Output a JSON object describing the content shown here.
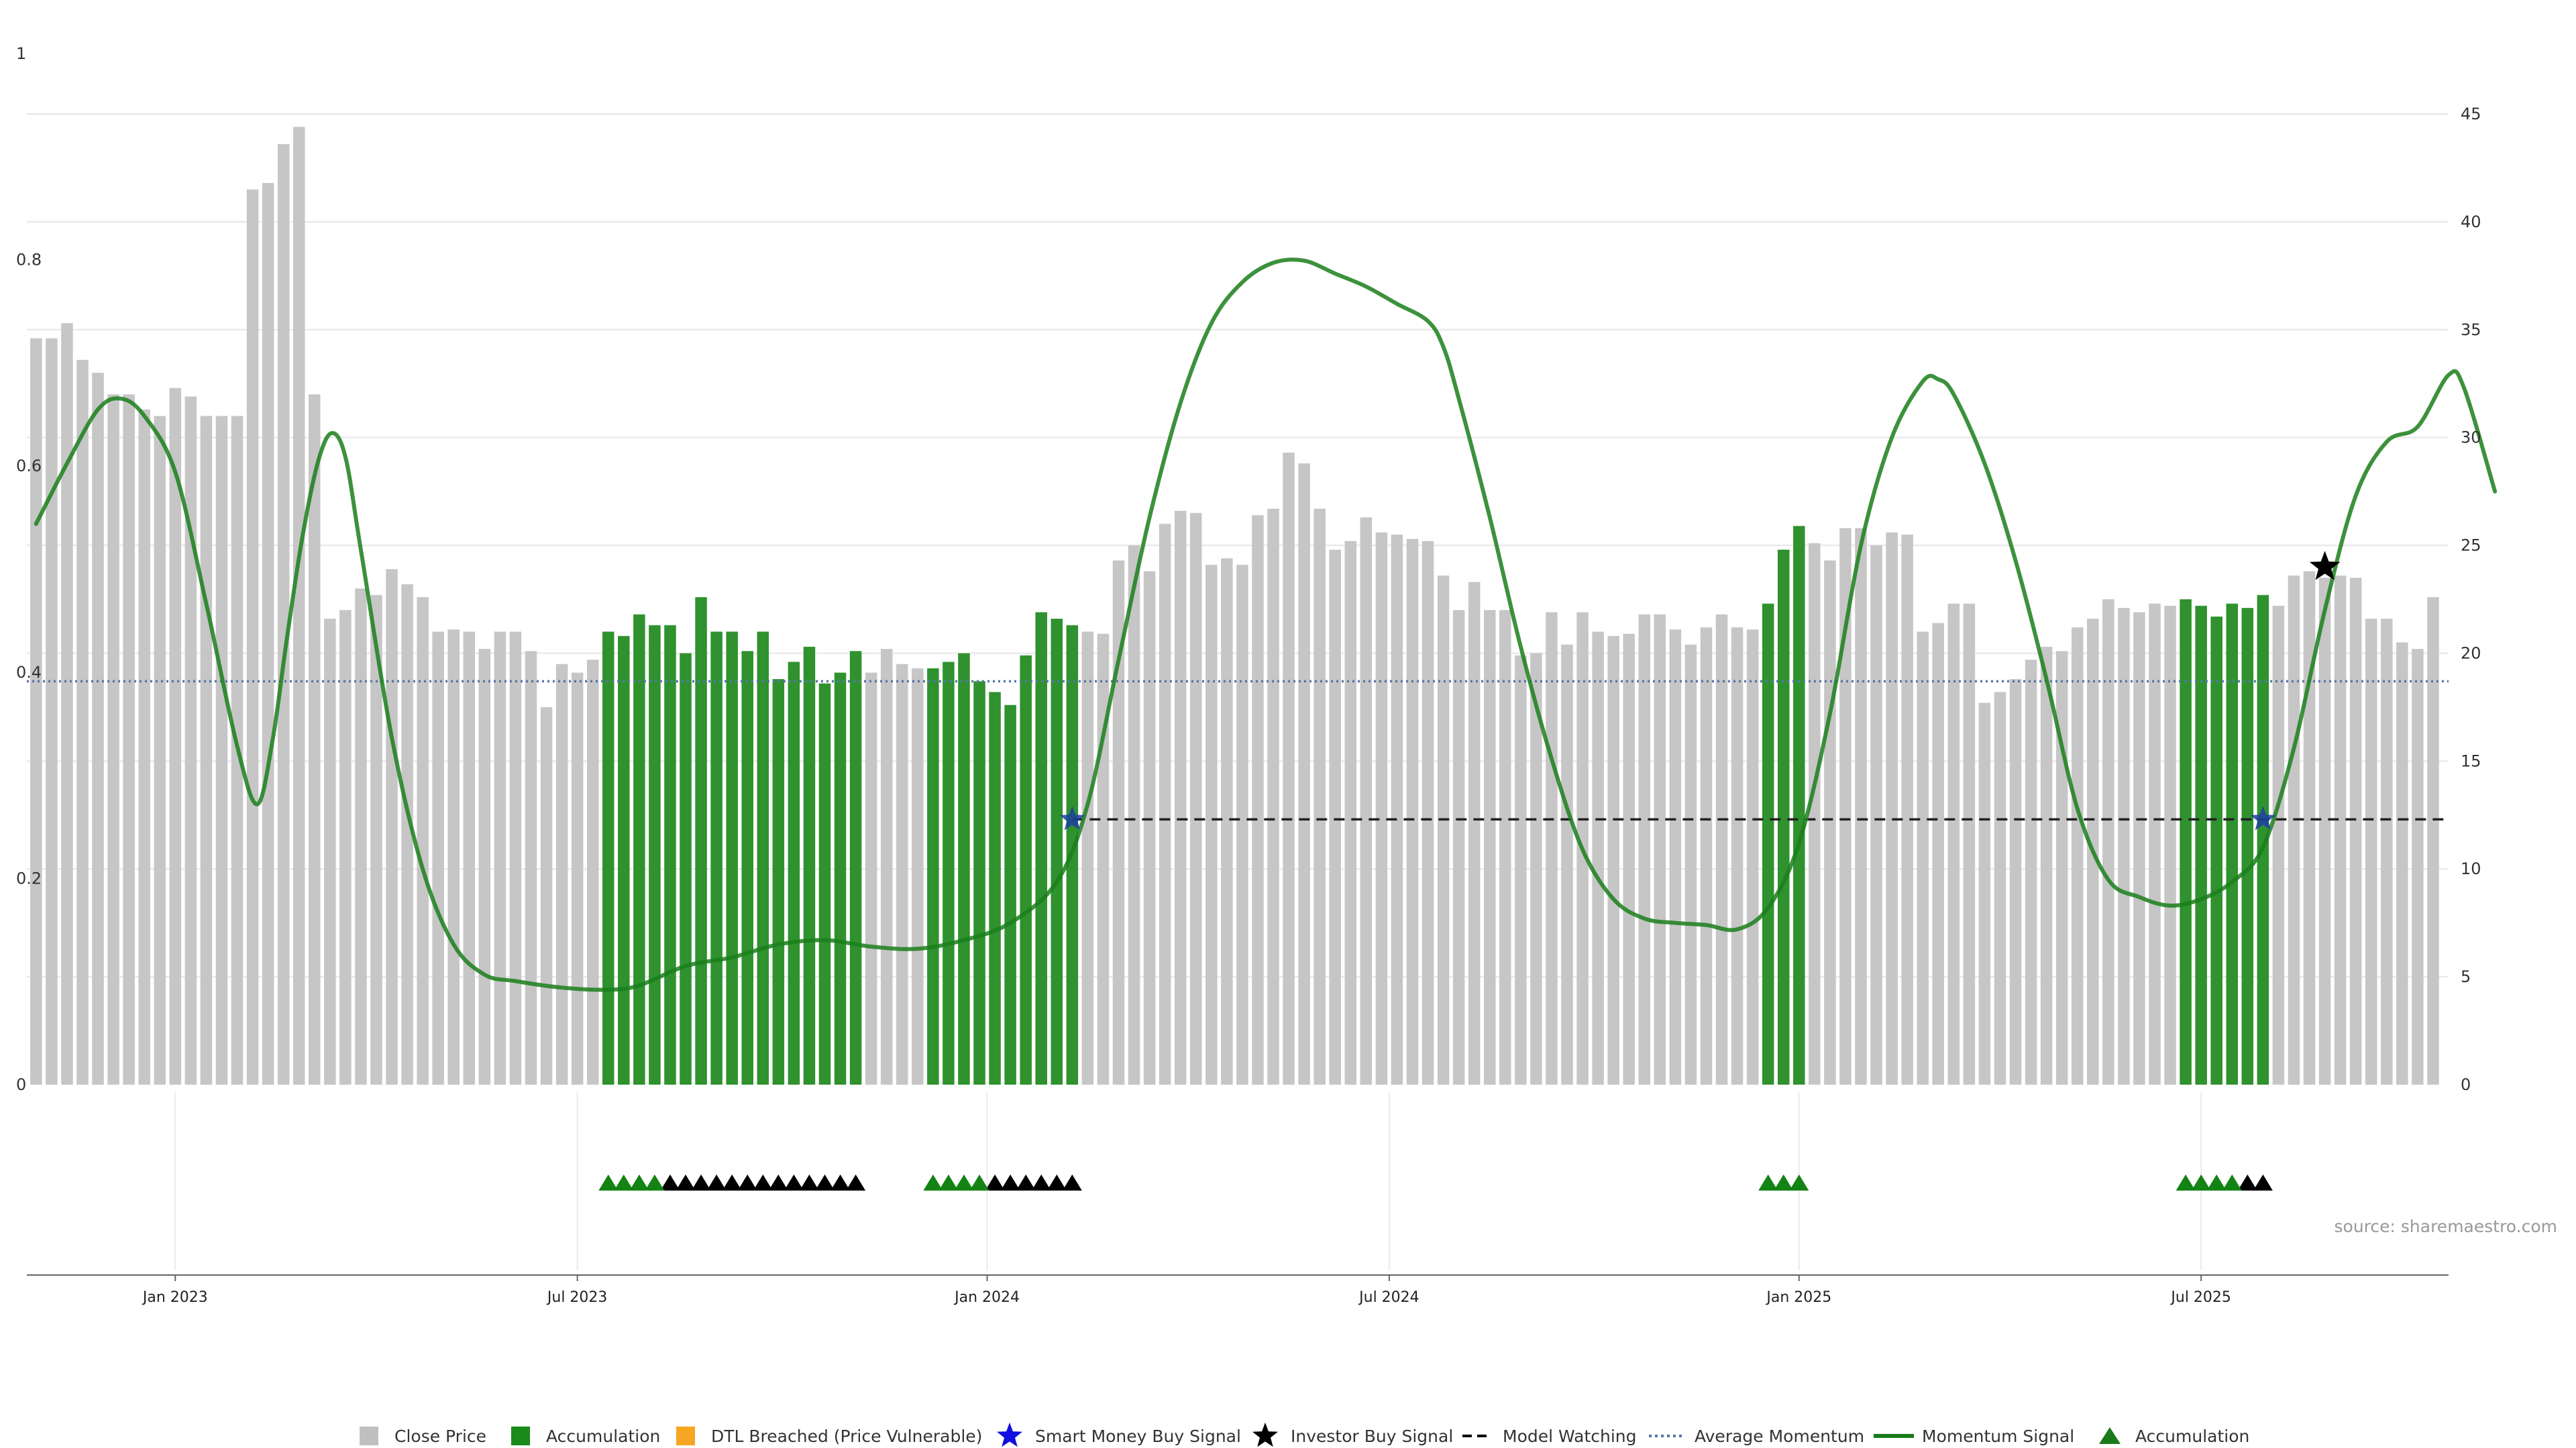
{
  "chart_data": {
    "type": "bar",
    "source": "source: sharemaestro.com",
    "left_axis": {
      "range": [
        0,
        1
      ],
      "ticks": [
        {
          "v": 0,
          "label": "0"
        },
        {
          "v": 0.2,
          "label": "0.2"
        },
        {
          "v": 0.4,
          "label": "0.4"
        },
        {
          "v": 0.6,
          "label": "0.6"
        },
        {
          "v": 0.8,
          "label": "0.8"
        },
        {
          "v": 1,
          "label": "1"
        }
      ]
    },
    "right_axis": {
      "range": [
        0,
        45
      ],
      "ticks": [
        {
          "v": 0,
          "label": "0"
        },
        {
          "v": 5,
          "label": "5"
        },
        {
          "v": 10,
          "label": "10"
        },
        {
          "v": 15,
          "label": "15"
        },
        {
          "v": 20,
          "label": "20"
        },
        {
          "v": 25,
          "label": "25"
        },
        {
          "v": 30,
          "label": "30"
        },
        {
          "v": 35,
          "label": "35"
        },
        {
          "v": 40,
          "label": "40"
        },
        {
          "v": 45,
          "label": "45"
        }
      ]
    },
    "x_ticks": [
      {
        "label": "Jan 2023",
        "index": 9
      },
      {
        "label": "Jul 2023",
        "index": 35
      },
      {
        "label": "Jan 2024",
        "index": 61.5
      },
      {
        "label": "Jul 2024",
        "index": 87.5
      },
      {
        "label": "Jan 2025",
        "index": 114
      },
      {
        "label": "Jul 2025",
        "index": 140
      }
    ],
    "bar_series": {
      "name": "Close Price",
      "values": [
        34.6,
        34.6,
        35.3,
        33.6,
        33.0,
        32.0,
        32.0,
        31.3,
        31.0,
        32.3,
        31.9,
        31.0,
        31.0,
        31.0,
        41.5,
        41.8,
        43.6,
        44.4,
        32.0,
        21.6,
        22.0,
        23.0,
        22.7,
        23.9,
        23.2,
        22.6,
        21.0,
        21.1,
        21.0,
        20.2,
        21.0,
        21.0,
        20.1,
        17.5,
        19.5,
        19.1,
        19.7,
        21.0,
        20.8,
        21.8,
        21.3,
        21.3,
        20.0,
        22.6,
        21.0,
        21.0,
        20.1,
        21.0,
        18.8,
        19.6,
        20.3,
        18.6,
        19.1,
        20.1,
        19.1,
        20.2,
        19.5,
        19.3,
        19.3,
        19.6,
        20.0,
        18.7,
        18.2,
        17.6,
        19.9,
        21.9,
        21.6,
        21.3,
        21.0,
        20.9,
        24.3,
        25.0,
        23.8,
        26.0,
        26.6,
        26.5,
        24.1,
        24.4,
        24.1,
        26.4,
        26.7,
        29.3,
        28.8,
        26.7,
        24.8,
        25.2,
        26.3,
        25.6,
        25.5,
        25.3,
        25.2,
        23.6,
        22.0,
        23.3,
        22.0,
        22.0,
        19.9,
        20.0,
        21.9,
        20.4,
        21.9,
        21.0,
        20.8,
        20.9,
        21.8,
        21.8,
        21.1,
        20.4,
        21.2,
        21.8,
        21.2,
        21.1,
        22.3,
        24.8,
        25.9,
        25.1,
        24.3,
        25.8,
        25.8,
        25.0,
        25.6,
        25.5,
        21.0,
        21.4,
        22.3,
        22.3,
        17.7,
        18.2,
        18.8,
        19.7,
        20.3,
        20.1,
        21.2,
        21.6,
        22.5,
        22.1,
        21.9,
        22.3,
        22.2,
        22.5,
        22.2,
        21.7,
        22.3,
        22.1,
        22.7,
        22.2,
        23.6,
        23.8,
        23.5,
        23.6,
        23.5,
        21.6,
        21.6,
        20.5,
        20.2,
        22.6
      ],
      "accumulation_ranges": [
        [
          37,
          53
        ],
        [
          58,
          67
        ],
        [
          112,
          114
        ],
        [
          139,
          144
        ]
      ]
    },
    "accumulation_triangles": {
      "green": [
        37,
        38,
        39,
        40,
        58,
        59,
        60,
        61,
        112,
        113,
        114,
        139,
        140,
        141,
        142
      ],
      "black": [
        41,
        42,
        43,
        44,
        45,
        46,
        47,
        48,
        49,
        50,
        51,
        52,
        53,
        62,
        63,
        64,
        65,
        66,
        67,
        143,
        144
      ]
    },
    "average_momentum": 18.7,
    "model_watching": [
      {
        "from_index": 67,
        "to_index": 156,
        "value": 12.3
      }
    ],
    "smart_money_signals": [
      {
        "index": 67,
        "value": 12.3
      },
      {
        "index": 144,
        "value": 12.3
      }
    ],
    "investor_signals": [
      {
        "index": 148,
        "value": 24.0
      }
    ],
    "momentum_signal": {
      "name": "Momentum Signal",
      "points": [
        [
          0,
          26
        ],
        [
          2,
          28.8
        ],
        [
          4,
          31.3
        ],
        [
          5.5,
          31.8
        ],
        [
          7,
          31.0
        ],
        [
          9,
          28.4
        ],
        [
          11,
          22.3
        ],
        [
          13,
          15.7
        ],
        [
          14.3,
          13.0
        ],
        [
          15.3,
          16.0
        ],
        [
          16.2,
          20.6
        ],
        [
          17.2,
          25.3
        ],
        [
          18.2,
          28.8
        ],
        [
          19.1,
          30.2
        ],
        [
          20,
          29.1
        ],
        [
          21,
          24.8
        ],
        [
          23,
          16.1
        ],
        [
          25,
          10.0
        ],
        [
          27,
          6.5
        ],
        [
          29,
          5.1
        ],
        [
          31,
          4.8
        ],
        [
          34,
          4.5
        ],
        [
          37,
          4.4
        ],
        [
          39,
          4.6
        ],
        [
          42,
          5.5
        ],
        [
          45,
          5.9
        ],
        [
          48,
          6.5
        ],
        [
          51,
          6.7
        ],
        [
          54,
          6.4
        ],
        [
          57,
          6.3
        ],
        [
          60,
          6.7
        ],
        [
          63,
          7.5
        ],
        [
          66,
          9.4
        ],
        [
          68,
          13.0
        ],
        [
          70,
          19.7
        ],
        [
          72,
          26.3
        ],
        [
          74,
          31.6
        ],
        [
          76,
          35.3
        ],
        [
          78,
          37.2
        ],
        [
          80,
          38.1
        ],
        [
          82,
          38.2
        ],
        [
          84,
          37.6
        ],
        [
          86,
          37.0
        ],
        [
          88,
          36.2
        ],
        [
          90,
          35.4
        ],
        [
          91,
          34.2
        ],
        [
          92,
          31.8
        ],
        [
          94,
          26.3
        ],
        [
          96,
          20.3
        ],
        [
          98,
          15.1
        ],
        [
          100,
          10.9
        ],
        [
          102,
          8.6
        ],
        [
          104,
          7.7
        ],
        [
          106,
          7.5
        ],
        [
          108,
          7.4
        ],
        [
          110,
          7.2
        ],
        [
          112,
          8.2
        ],
        [
          114,
          11.2
        ],
        [
          116,
          17.2
        ],
        [
          118,
          25.0
        ],
        [
          120,
          30.0
        ],
        [
          122,
          32.6
        ],
        [
          123,
          32.7
        ],
        [
          124,
          32.0
        ],
        [
          126,
          28.8
        ],
        [
          128,
          24.3
        ],
        [
          130,
          18.8
        ],
        [
          132,
          12.8
        ],
        [
          134,
          9.5
        ],
        [
          136,
          8.7
        ],
        [
          138,
          8.3
        ],
        [
          140,
          8.6
        ],
        [
          142,
          9.4
        ],
        [
          144,
          11.0
        ],
        [
          146,
          15.6
        ],
        [
          148,
          22.0
        ],
        [
          150,
          27.3
        ],
        [
          152,
          29.8
        ],
        [
          154,
          30.5
        ],
        [
          156,
          32.9
        ],
        [
          157,
          32.3
        ],
        [
          159,
          27.5
        ]
      ]
    },
    "legend": [
      {
        "label": "Close Price",
        "icon": "square",
        "color": "#c0c0c0"
      },
      {
        "label": "Accumulation",
        "icon": "square",
        "color": "#1a8a1a"
      },
      {
        "label": "DTL Breached (Price Vulnerable)",
        "icon": "square",
        "color": "#f5a623"
      },
      {
        "label": "Smart Money Buy Signal",
        "icon": "star",
        "color": "#1010e0"
      },
      {
        "label": "Investor Buy Signal",
        "icon": "star",
        "color": "#000000"
      },
      {
        "label": "Model Watching",
        "icon": "dash",
        "color": "#000000"
      },
      {
        "label": "Average Momentum",
        "icon": "dot",
        "color": "#5577aa"
      },
      {
        "label": "Momentum Signal",
        "icon": "line",
        "color": "#1a7a1a"
      },
      {
        "label": "Accumulation",
        "icon": "triangle",
        "color": "#1a7a1a"
      }
    ],
    "colors": {
      "bar_default": "#c6c6c6",
      "bar_accumulation": "#2f922f",
      "momentum_line": "#1a7f1a",
      "average_line": "#5577aa",
      "triangle_green": "#138313",
      "triangle_black": "#000000",
      "star_smart": "#1c3fa0",
      "star_investor": "#000000"
    }
  }
}
